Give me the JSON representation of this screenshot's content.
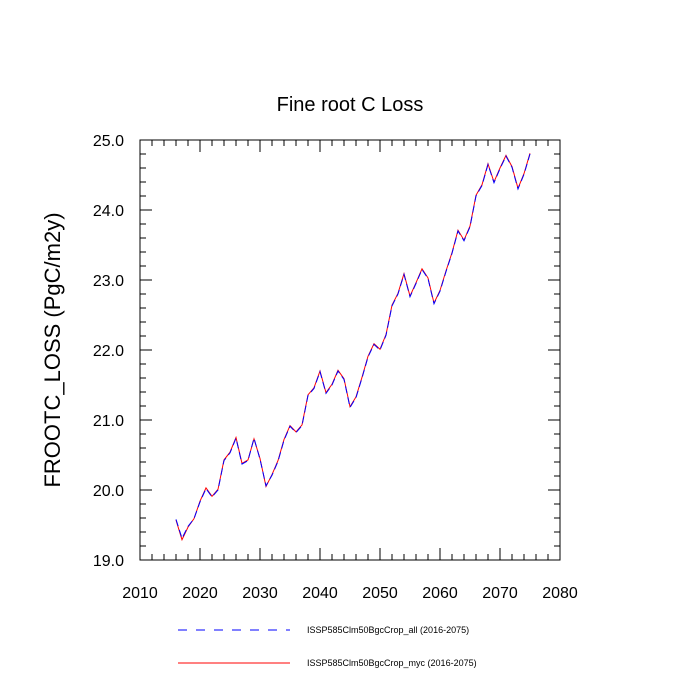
{
  "chart_data": {
    "type": "line",
    "title": "Fine root C Loss",
    "ylabel": "FROOTC_LOSS  (PgC/m2y)",
    "xlabel": "",
    "xlim": [
      2010,
      2080
    ],
    "ylim": [
      19.0,
      25.0
    ],
    "x_ticks": [
      "2010",
      "2020",
      "2030",
      "2040",
      "2050",
      "2060",
      "2070",
      "2080"
    ],
    "y_ticks": [
      "19.0",
      "20.0",
      "21.0",
      "22.0",
      "23.0",
      "24.0",
      "25.0"
    ],
    "grid": false,
    "legend_position": "bottom",
    "x": [
      2016,
      2017,
      2018,
      2019,
      2020,
      2021,
      2022,
      2023,
      2024,
      2025,
      2026,
      2027,
      2028,
      2029,
      2030,
      2031,
      2032,
      2033,
      2034,
      2035,
      2036,
      2037,
      2038,
      2039,
      2040,
      2041,
      2042,
      2043,
      2044,
      2045,
      2046,
      2047,
      2048,
      2049,
      2050,
      2051,
      2052,
      2053,
      2054,
      2055,
      2056,
      2057,
      2058,
      2059,
      2060,
      2061,
      2062,
      2063,
      2064,
      2065,
      2066,
      2067,
      2068,
      2069,
      2070,
      2071,
      2072,
      2073,
      2074,
      2075
    ],
    "series": [
      {
        "name": "ISSP585Clm50BgcCrop_all (2016-2075)",
        "color": "#0000ff",
        "dash": "dashed",
        "values": [
          19.58,
          19.31,
          19.48,
          19.59,
          19.83,
          20.02,
          19.9,
          20.0,
          20.42,
          20.53,
          20.74,
          20.37,
          20.42,
          20.74,
          20.44,
          20.06,
          20.21,
          20.41,
          20.71,
          20.91,
          20.82,
          20.92,
          21.35,
          21.45,
          21.69,
          21.38,
          21.5,
          21.7,
          21.58,
          21.18,
          21.32,
          21.6,
          21.9,
          22.08,
          22.0,
          22.21,
          22.63,
          22.8,
          23.08,
          22.76,
          22.95,
          23.15,
          23.02,
          22.66,
          22.84,
          23.12,
          23.38,
          23.7,
          23.56,
          23.76,
          24.2,
          24.35,
          24.65,
          24.39,
          24.59,
          24.77,
          24.61,
          24.3,
          24.51,
          24.8
        ]
      },
      {
        "name": "ISSP585Clm50BgcCrop_myc (2016-2075)",
        "color": "#ff0000",
        "dash": "solid",
        "values": [
          19.57,
          19.29,
          19.47,
          19.59,
          19.84,
          20.03,
          19.91,
          20.01,
          20.43,
          20.54,
          20.75,
          20.38,
          20.43,
          20.73,
          20.45,
          20.05,
          20.22,
          20.42,
          20.72,
          20.92,
          20.83,
          20.93,
          21.36,
          21.46,
          21.7,
          21.39,
          21.51,
          21.71,
          21.59,
          21.19,
          21.33,
          21.61,
          21.91,
          22.09,
          22.01,
          22.22,
          22.64,
          22.81,
          23.09,
          22.77,
          22.96,
          23.16,
          23.03,
          22.67,
          22.85,
          23.13,
          23.39,
          23.71,
          23.57,
          23.77,
          24.21,
          24.36,
          24.66,
          24.4,
          24.6,
          24.78,
          24.62,
          24.31,
          24.52,
          24.81
        ]
      }
    ]
  }
}
